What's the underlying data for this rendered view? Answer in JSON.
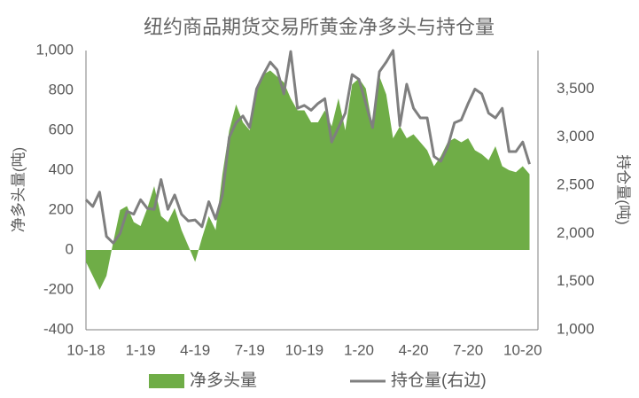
{
  "chart_data": {
    "type": "area-line",
    "title": "纽约商品期货交易所黄金净多头与持仓量",
    "y_label": "净多头量(吨)",
    "y2_label": "持仓量(吨)",
    "categories": [
      "10-18",
      null,
      null,
      null,
      null,
      null,
      null,
      null,
      "1-19",
      null,
      null,
      null,
      null,
      null,
      null,
      null,
      "4-19",
      null,
      null,
      null,
      null,
      null,
      null,
      null,
      "7-19",
      null,
      null,
      null,
      null,
      null,
      null,
      null,
      "10-19",
      null,
      null,
      null,
      null,
      null,
      null,
      null,
      "1-20",
      null,
      null,
      null,
      null,
      null,
      null,
      null,
      "4-20",
      null,
      null,
      null,
      null,
      null,
      null,
      null,
      "7-20",
      null,
      null,
      null,
      null,
      null,
      null,
      null,
      "10-20",
      null
    ],
    "ylim": [
      -400,
      1000
    ],
    "yticks": [
      -400,
      -200,
      0,
      200,
      400,
      600,
      800,
      {
        "value": 1000,
        "label": "1,000"
      }
    ],
    "y2lim": [
      1000,
      3900
    ],
    "y2ticks": [
      {
        "value": 1000,
        "label": "1,000"
      },
      {
        "value": 1500,
        "label": "1,500"
      },
      {
        "value": 2000,
        "label": "2,000"
      },
      {
        "value": 2500,
        "label": "2,500"
      },
      {
        "value": 3000,
        "label": "3,000"
      },
      {
        "value": 3500,
        "label": "3,500"
      }
    ],
    "series": [
      {
        "name": "净多头量",
        "type": "area",
        "color": "#6fad47",
        "values": [
          -60,
          -130,
          -200,
          -130,
          40,
          200,
          220,
          140,
          120,
          210,
          320,
          170,
          140,
          210,
          100,
          20,
          -60,
          60,
          170,
          100,
          380,
          600,
          730,
          640,
          600,
          800,
          880,
          900,
          870,
          840,
          760,
          700,
          700,
          640,
          640,
          700,
          620,
          760,
          600,
          830,
          860,
          810,
          620,
          870,
          780,
          560,
          620,
          560,
          580,
          540,
          500,
          420,
          470,
          540,
          560,
          540,
          560,
          500,
          480,
          450,
          520,
          420,
          400,
          390,
          420,
          380
        ]
      },
      {
        "name": "持仓量(右边)",
        "type": "line",
        "axis": "y2",
        "color": "#7f7f7f",
        "values": [
          2350,
          2280,
          2430,
          1970,
          1900,
          2000,
          2230,
          2200,
          2350,
          2260,
          2250,
          2560,
          2250,
          2400,
          2200,
          2130,
          2140,
          2070,
          2330,
          2150,
          2400,
          3000,
          3150,
          3220,
          3100,
          3500,
          3650,
          3780,
          3700,
          3450,
          3890,
          3300,
          3330,
          3280,
          3350,
          3400,
          2950,
          3100,
          3250,
          3650,
          3600,
          3350,
          3100,
          3680,
          3780,
          3900,
          3120,
          3550,
          3300,
          3200,
          3200,
          2800,
          2750,
          2900,
          3150,
          3180,
          3350,
          3500,
          3450,
          3250,
          3200,
          3300,
          2850,
          2850,
          2950,
          2720
        ]
      }
    ]
  }
}
